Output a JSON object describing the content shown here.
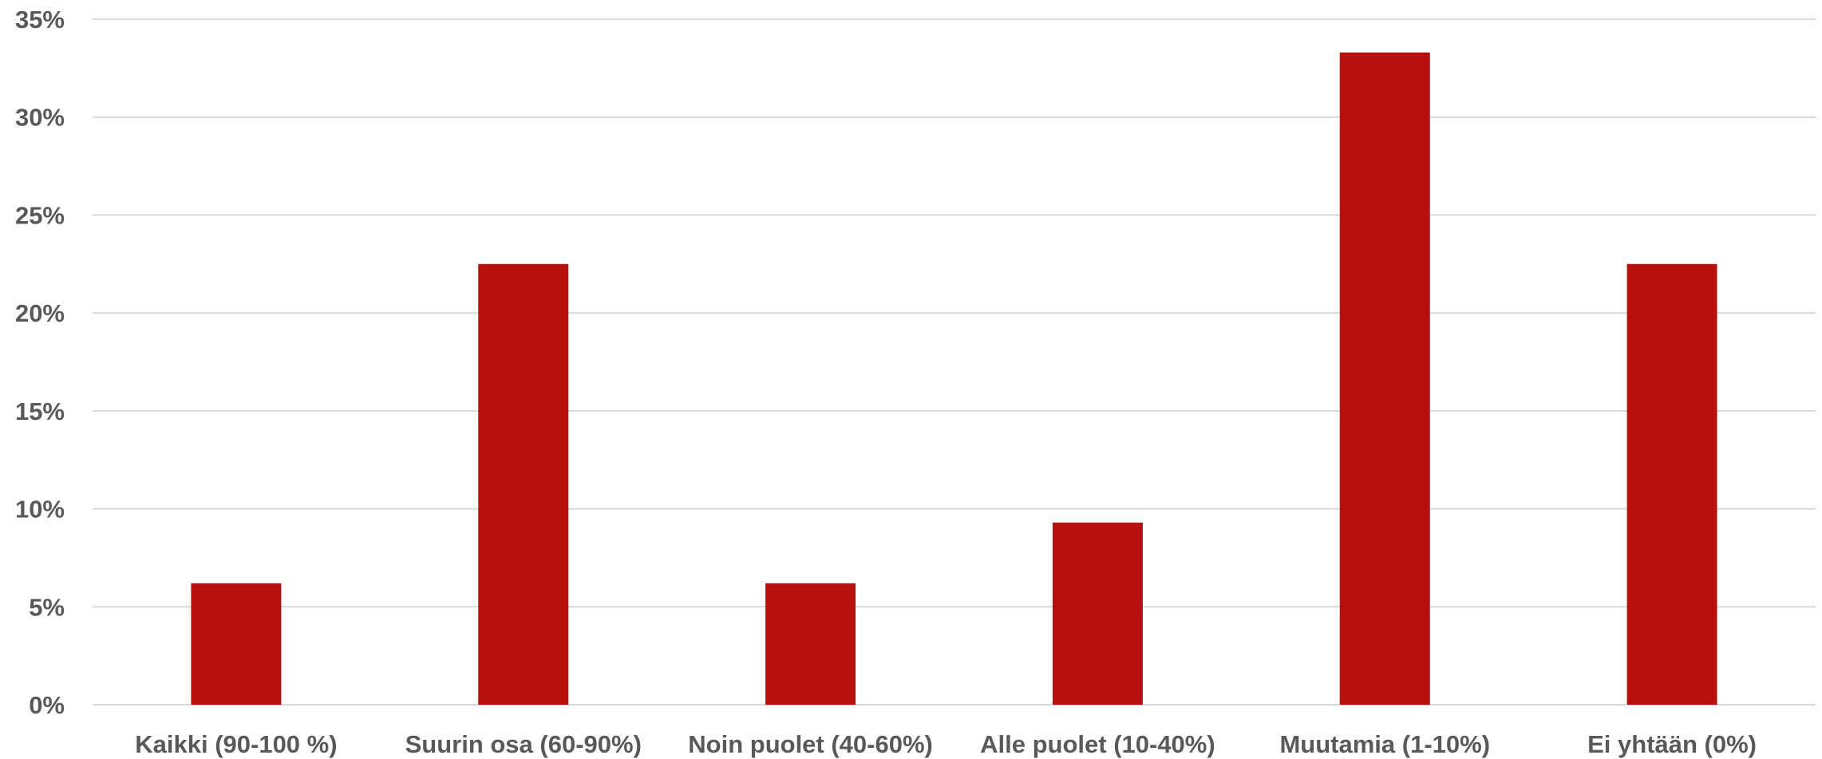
{
  "chart_data": {
    "type": "bar",
    "title": "",
    "xlabel": "",
    "ylabel": "",
    "categories": [
      "Kaikki (90-100 %)",
      "Suurin osa (60-90%)",
      "Noin puolet (40-60%)",
      "Alle puolet (10-40%)",
      "Muutamia (1-10%)",
      "Ei yhtään (0%)"
    ],
    "values": [
      6.2,
      22.5,
      6.2,
      9.3,
      33.3,
      22.5
    ],
    "value_format": "percent",
    "ylim": [
      0,
      35
    ],
    "y_ticks": [
      0,
      5,
      10,
      15,
      20,
      25,
      30,
      35
    ],
    "y_tick_labels": [
      "0%",
      "5%",
      "10%",
      "15%",
      "20%",
      "25%",
      "30%",
      "35%"
    ],
    "grid": true,
    "legend": "none",
    "bar_color": "#b80f0f"
  }
}
